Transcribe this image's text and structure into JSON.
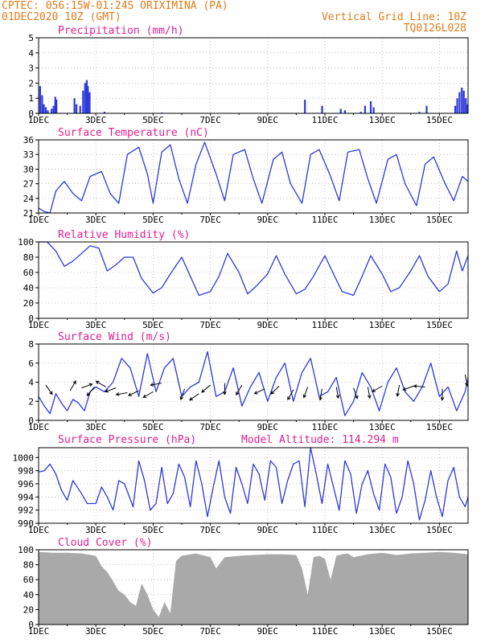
{
  "header": {
    "line1_left": "CPTEC:   056:15W-01:24S   ORIXIMINA (PA)",
    "line2_left": "01DEC2020 10Z (GMT)",
    "line2_right": "Vertical Grid Line: 10Z",
    "line3_right": "TQ0126L028",
    "model_altitude": "Model Altitude: 114.294 m"
  },
  "colors": {
    "header": "#e07b18",
    "title": "#e0208c",
    "line": "#2c38dc",
    "bar": "#2c38dc",
    "cloud": "#a9a9a9",
    "grid": "#999999"
  },
  "x_tick_labels": [
    "1DEC",
    "3DEC",
    "5DEC",
    "7DEC",
    "9DEC",
    "11DEC",
    "13DEC",
    "15DEC"
  ],
  "x_tick_days": [
    0,
    2,
    4,
    6,
    8,
    10,
    12,
    14
  ],
  "x_range_days": [
    0,
    15
  ],
  "chart_data": [
    {
      "type": "bar",
      "title": "Precipitation (mm/h)",
      "ylim": [
        0,
        5
      ],
      "y_ticks": [
        "0",
        "1",
        "2",
        "3",
        "4",
        "5"
      ],
      "points": [
        [
          0.05,
          1.8
        ],
        [
          0.12,
          1.2
        ],
        [
          0.18,
          0.6
        ],
        [
          0.25,
          0.4
        ],
        [
          0.32,
          0.2
        ],
        [
          0.45,
          0.3
        ],
        [
          0.52,
          0.5
        ],
        [
          0.58,
          1.1
        ],
        [
          0.62,
          0.9
        ],
        [
          1.25,
          1.0
        ],
        [
          1.32,
          0.6
        ],
        [
          1.45,
          0.5
        ],
        [
          1.55,
          1.5
        ],
        [
          1.62,
          2.0
        ],
        [
          1.68,
          2.2
        ],
        [
          1.72,
          1.8
        ],
        [
          1.78,
          1.4
        ],
        [
          2.3,
          0.1
        ],
        [
          4.3,
          0.05
        ],
        [
          9.3,
          0.9
        ],
        [
          9.9,
          0.5
        ],
        [
          10.55,
          0.3
        ],
        [
          10.7,
          0.2
        ],
        [
          11.25,
          0.1
        ],
        [
          11.4,
          0.5
        ],
        [
          11.6,
          0.8
        ],
        [
          11.7,
          0.4
        ],
        [
          13.3,
          0.1
        ],
        [
          13.55,
          0.5
        ],
        [
          14.55,
          0.5
        ],
        [
          14.62,
          1.0
        ],
        [
          14.7,
          1.4
        ],
        [
          14.78,
          1.7
        ],
        [
          14.85,
          1.5
        ],
        [
          14.92,
          1.0
        ],
        [
          14.98,
          0.6
        ]
      ]
    },
    {
      "type": "line",
      "title": "Surface Temperature (nC)",
      "ylim": [
        21,
        36
      ],
      "y_ticks": [
        "21",
        "24",
        "27",
        "30",
        "33",
        "36"
      ],
      "x": [
        0,
        0.2,
        0.4,
        0.6,
        0.9,
        1.2,
        1.5,
        1.8,
        2.2,
        2.5,
        2.8,
        3.1,
        3.5,
        3.8,
        4.0,
        4.3,
        4.6,
        4.9,
        5.2,
        5.5,
        5.8,
        6.2,
        6.5,
        6.8,
        7.2,
        7.5,
        7.8,
        8.2,
        8.5,
        8.8,
        9.2,
        9.5,
        9.8,
        10.2,
        10.5,
        10.8,
        11.2,
        11.5,
        11.8,
        12.2,
        12.5,
        12.8,
        13.2,
        13.5,
        13.8,
        14.2,
        14.5,
        14.8,
        15.0
      ],
      "y": [
        22.0,
        21.3,
        21.0,
        25.5,
        27.5,
        25.0,
        23.5,
        28.5,
        29.5,
        25.0,
        23.0,
        33.0,
        34.5,
        29.0,
        23.0,
        33.5,
        35.0,
        28.0,
        23.0,
        31.0,
        35.5,
        29.0,
        23.5,
        33.0,
        34.0,
        28.0,
        23.0,
        32.0,
        33.5,
        27.0,
        23.0,
        33.0,
        34.0,
        28.5,
        23.5,
        33.5,
        34.0,
        28.0,
        23.0,
        32.0,
        33.0,
        27.0,
        22.5,
        31.0,
        32.5,
        27.0,
        23.5,
        28.5,
        27.5
      ]
    },
    {
      "type": "line",
      "title": "Relative Humidity (%)",
      "ylim": [
        0,
        100
      ],
      "y_ticks": [
        "0",
        "20",
        "40",
        "60",
        "80",
        "100"
      ],
      "x": [
        0,
        0.3,
        0.6,
        0.9,
        1.2,
        1.5,
        1.8,
        2.1,
        2.4,
        2.7,
        3.0,
        3.3,
        3.6,
        4.0,
        4.3,
        4.6,
        5.0,
        5.3,
        5.6,
        6.0,
        6.3,
        6.6,
        7.0,
        7.3,
        7.6,
        8.0,
        8.3,
        8.6,
        9.0,
        9.3,
        9.6,
        10.0,
        10.3,
        10.6,
        11.0,
        11.3,
        11.6,
        12.0,
        12.3,
        12.6,
        13.0,
        13.3,
        13.6,
        14.0,
        14.3,
        14.6,
        14.8,
        15.0
      ],
      "y": [
        100,
        100,
        88,
        68,
        75,
        85,
        95,
        92,
        62,
        70,
        80,
        80,
        52,
        33,
        40,
        58,
        80,
        55,
        30,
        35,
        55,
        85,
        60,
        32,
        42,
        58,
        82,
        58,
        32,
        38,
        55,
        82,
        58,
        35,
        30,
        55,
        82,
        58,
        35,
        40,
        62,
        82,
        55,
        35,
        45,
        88,
        62,
        82
      ]
    },
    {
      "type": "line",
      "title": "Surface Wind (m/s)",
      "ylim": [
        0,
        8
      ],
      "y_ticks": [
        "0",
        "2",
        "4",
        "6",
        "8"
      ],
      "x": [
        0,
        0.2,
        0.4,
        0.6,
        0.8,
        1.0,
        1.2,
        1.4,
        1.6,
        1.8,
        2.0,
        2.3,
        2.6,
        2.9,
        3.2,
        3.5,
        3.8,
        4.1,
        4.4,
        4.7,
        5.0,
        5.3,
        5.6,
        5.9,
        6.2,
        6.5,
        6.8,
        7.1,
        7.4,
        7.7,
        8.0,
        8.3,
        8.6,
        8.9,
        9.2,
        9.5,
        9.8,
        10.1,
        10.4,
        10.7,
        11.0,
        11.3,
        11.6,
        11.9,
        12.2,
        12.5,
        12.8,
        13.1,
        13.4,
        13.7,
        14.0,
        14.3,
        14.6,
        14.9,
        15.0
      ],
      "y": [
        2.5,
        1.5,
        0.7,
        2.8,
        1.8,
        1.0,
        2.2,
        1.8,
        1.0,
        3.0,
        3.5,
        3.0,
        4.0,
        6.5,
        5.5,
        2.5,
        7.0,
        3.0,
        5.5,
        6.5,
        2.5,
        3.5,
        4.0,
        7.2,
        2.5,
        3.0,
        5.5,
        1.5,
        3.5,
        5.0,
        2.0,
        4.5,
        6.0,
        2.0,
        5.0,
        6.5,
        2.5,
        3.0,
        4.5,
        0.5,
        2.0,
        5.0,
        3.5,
        1.0,
        4.0,
        5.5,
        3.0,
        2.0,
        3.5,
        6.0,
        2.5,
        3.5,
        1.0,
        3.0,
        4.5
      ],
      "arrows": [
        [
          0.25,
          3.7,
          -55
        ],
        [
          1.1,
          3.1,
          60
        ],
        [
          1.5,
          3.4,
          20
        ],
        [
          1.95,
          3.5,
          -130
        ],
        [
          2.35,
          3.5,
          150
        ],
        [
          2.7,
          3.4,
          -160
        ],
        [
          3.1,
          2.9,
          -170
        ],
        [
          3.5,
          3.1,
          -155
        ],
        [
          4.0,
          3.0,
          -150
        ],
        [
          4.3,
          3.9,
          -170
        ],
        [
          5.1,
          3.3,
          -110
        ],
        [
          5.6,
          2.8,
          -145
        ],
        [
          6.0,
          3.7,
          -140
        ],
        [
          6.5,
          3.9,
          -90
        ],
        [
          7.1,
          3.7,
          -120
        ],
        [
          7.9,
          3.3,
          -155
        ],
        [
          8.4,
          3.6,
          -135
        ],
        [
          8.9,
          3.2,
          -120
        ],
        [
          9.4,
          3.5,
          -110
        ],
        [
          9.9,
          3.3,
          -100
        ],
        [
          10.4,
          3.5,
          -80
        ],
        [
          11.0,
          3.4,
          -70
        ],
        [
          11.5,
          3.5,
          -80
        ],
        [
          12.0,
          3.6,
          -150
        ],
        [
          12.6,
          3.7,
          -100
        ],
        [
          13.1,
          3.6,
          -160
        ],
        [
          13.5,
          3.5,
          175
        ],
        [
          14.1,
          3.3,
          -90
        ],
        [
          14.9,
          4.8,
          -80
        ]
      ]
    },
    {
      "type": "line",
      "title": "Surface Pressure (hPa)",
      "ylim": [
        990,
        1001.5
      ],
      "y_ticks": [
        "990",
        "992",
        "994",
        "996",
        "998",
        "1000"
      ],
      "x": [
        0,
        0.2,
        0.4,
        0.6,
        0.8,
        1.0,
        1.2,
        1.5,
        1.7,
        2.0,
        2.2,
        2.4,
        2.6,
        2.8,
        3.0,
        3.3,
        3.5,
        3.7,
        3.9,
        4.1,
        4.3,
        4.5,
        4.7,
        4.9,
        5.1,
        5.3,
        5.5,
        5.7,
        5.9,
        6.1,
        6.3,
        6.5,
        6.7,
        6.9,
        7.1,
        7.3,
        7.5,
        7.7,
        7.9,
        8.1,
        8.3,
        8.5,
        8.7,
        8.9,
        9.1,
        9.3,
        9.5,
        9.7,
        9.9,
        10.1,
        10.3,
        10.5,
        10.7,
        10.9,
        11.1,
        11.3,
        11.5,
        11.7,
        11.9,
        12.1,
        12.3,
        12.5,
        12.7,
        12.9,
        13.1,
        13.3,
        13.5,
        13.7,
        13.9,
        14.1,
        14.3,
        14.5,
        14.7,
        14.9,
        15.0
      ],
      "y": [
        997.8,
        998.0,
        999.0,
        997.5,
        995.0,
        993.5,
        996.5,
        994.5,
        993.0,
        993.0,
        995.5,
        994.0,
        992.0,
        996.5,
        996.0,
        992.5,
        999.5,
        996.5,
        992.0,
        993.0,
        998.5,
        993.0,
        994.5,
        999.0,
        997.0,
        992.5,
        999.5,
        996.0,
        991.0,
        995.5,
        999.5,
        994.0,
        991.5,
        998.5,
        996.0,
        993.0,
        999.0,
        997.5,
        993.5,
        999.5,
        998.5,
        993.0,
        996.5,
        999.0,
        999.5,
        992.5,
        1001.5,
        997.5,
        993.0,
        999.0,
        995.5,
        992.0,
        999.5,
        997.5,
        991.5,
        996.0,
        998.0,
        994.5,
        992.0,
        999.0,
        997.0,
        991.5,
        994.0,
        999.5,
        996.0,
        990.5,
        993.5,
        998.0,
        994.0,
        991.0,
        996.5,
        998.5,
        994.0,
        992.5,
        994.0
      ]
    },
    {
      "type": "bar",
      "title": "Cloud Cover (%)",
      "ylim": [
        0,
        100
      ],
      "y_ticks": [
        "0",
        "20",
        "40",
        "60",
        "80",
        "100"
      ],
      "x": [
        0,
        0.5,
        1.0,
        1.5,
        2.0,
        2.2,
        2.4,
        2.6,
        2.8,
        3.0,
        3.2,
        3.4,
        3.6,
        3.8,
        4.0,
        4.2,
        4.4,
        4.6,
        4.8,
        5.0,
        5.5,
        6.0,
        6.2,
        6.5,
        7.0,
        7.5,
        8.0,
        8.5,
        9.0,
        9.2,
        9.4,
        9.6,
        9.8,
        10.0,
        10.2,
        10.4,
        10.6,
        10.8,
        11.0,
        11.5,
        12.0,
        12.5,
        13.0,
        13.5,
        14.0,
        14.5,
        15.0
      ],
      "y": [
        97,
        96,
        96,
        95,
        92,
        78,
        70,
        58,
        45,
        40,
        30,
        25,
        55,
        40,
        20,
        10,
        30,
        15,
        85,
        92,
        95,
        90,
        75,
        90,
        92,
        93,
        94,
        94,
        93,
        75,
        40,
        90,
        92,
        88,
        60,
        92,
        94,
        95,
        90,
        94,
        96,
        93,
        95,
        96,
        97,
        96,
        94
      ]
    }
  ]
}
